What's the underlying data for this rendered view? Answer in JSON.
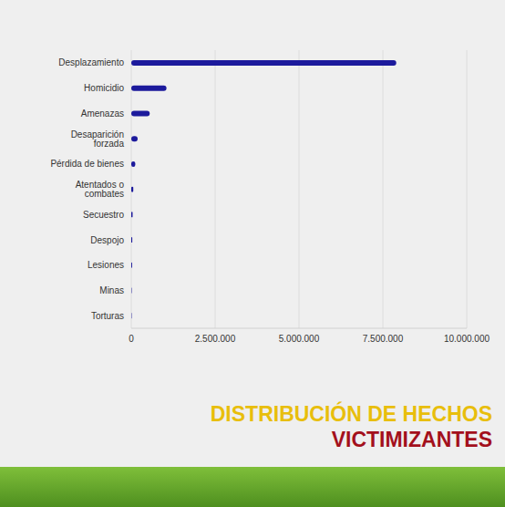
{
  "chart_data": {
    "type": "bar",
    "orientation": "horizontal",
    "title": "DISTRIBUCIÓN DE HECHOS",
    "subtitle": "VICTIMIZANTES",
    "categories": [
      "Desplazamiento",
      "Homicidio",
      "Amenazas",
      "Desaparición forzada",
      "Pérdida de bienes",
      "Atentados o combates",
      "Secuestro",
      "Despojo",
      "Lesiones",
      "Minas",
      "Torturas"
    ],
    "values": [
      7900000,
      1050000,
      550000,
      190000,
      120000,
      60000,
      40000,
      30000,
      25000,
      12000,
      11000
    ],
    "color": "#1c1a9c",
    "xlim": [
      0,
      10000000
    ],
    "xticks": [
      0,
      {
        "value": 2500000,
        "label": "2.500.000"
      },
      {
        "value": 5000000,
        "label": "5.000.000"
      },
      {
        "value": 7500000,
        "label": "7.500.000"
      },
      {
        "value": 10000000,
        "label": "10.000.000"
      }
    ],
    "grid": true
  }
}
